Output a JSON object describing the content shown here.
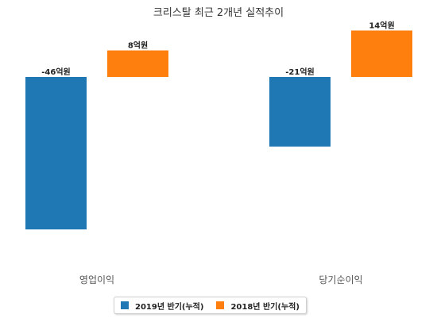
{
  "chart_data": {
    "type": "bar",
    "title": "크리스탈 최근 2개년 실적추이",
    "categories": [
      "영업이익",
      "당기순이익"
    ],
    "series": [
      {
        "name": "2019년 반기(누적)",
        "color": "#1f77b4",
        "values": [
          -46,
          -21
        ],
        "labels": [
          "-46억원",
          "-21억원"
        ]
      },
      {
        "name": "2018년 반기(누적)",
        "color": "#ff7f0e",
        "values": [
          8,
          14
        ],
        "labels": [
          "8억원",
          "14억원"
        ]
      }
    ],
    "ylim": [
      -50,
      15
    ],
    "grid": false,
    "legend_position": "bottom-center"
  }
}
